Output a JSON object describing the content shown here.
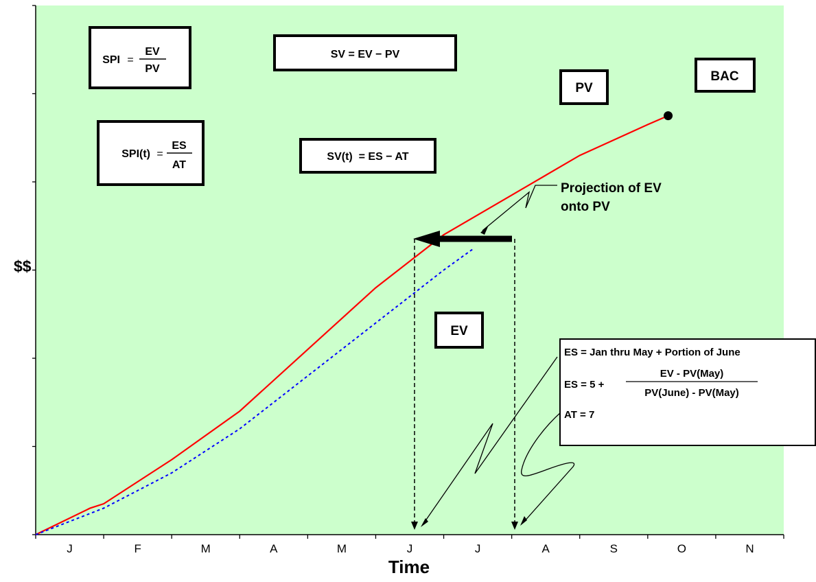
{
  "chart_data": {
    "type": "line",
    "categories": [
      "J",
      "F",
      "M",
      "A",
      "M",
      "J",
      "J",
      "A",
      "S",
      "O",
      "N"
    ],
    "xlabel": "Time",
    "ylabel": "$$",
    "grid": false,
    "series": [
      {
        "name": "PV",
        "style": "solid",
        "color": "#ff0000",
        "x": [
          0,
          0.8,
          1.0,
          2.0,
          3.0,
          4.0,
          5.0,
          6.0,
          7.0,
          7.5,
          8.0,
          8.5,
          9.0,
          9.3
        ],
        "y": [
          0,
          0.6,
          0.7,
          1.7,
          2.8,
          4.2,
          5.6,
          6.8,
          7.7,
          8.15,
          8.6,
          8.95,
          9.3,
          9.5
        ]
      },
      {
        "name": "EV",
        "style": "dotted",
        "color": "#0000ff",
        "x": [
          0,
          1.0,
          2.0,
          3.0,
          4.0,
          5.0,
          6.0,
          6.45
        ],
        "y": [
          0,
          0.6,
          1.4,
          2.4,
          3.6,
          4.8,
          6.0,
          6.5
        ]
      }
    ],
    "bac_marker": {
      "x": 9.3,
      "y": 9.5
    },
    "xlim": [
      0,
      11
    ],
    "ylim": [
      0,
      12
    ]
  },
  "labels": {
    "spi_lhs": "SPI",
    "spi_num": "EV",
    "spi_den": "PV",
    "sv_formula": "SV = EV − PV",
    "spit_lhs": "SPI(t)",
    "spit_num": "ES",
    "spit_den": "AT",
    "svt_formula": "SV(t)  = ES − AT",
    "pv_box": "PV",
    "bac_box": "BAC",
    "ev_box": "EV",
    "projection_line1": "Projection of EV",
    "projection_line2": "onto PV",
    "es_line1": "ES = Jan thru May + Portion of June",
    "es_lhs": "ES = 5 +",
    "es_num": "EV - PV(May)",
    "es_den": "PV(June) - PV(May)",
    "at_line": "AT = 7",
    "equals": "="
  },
  "colors": {
    "plot_background": "#ccffcc",
    "pv_line": "#ff0000",
    "ev_line": "#0000ff"
  }
}
